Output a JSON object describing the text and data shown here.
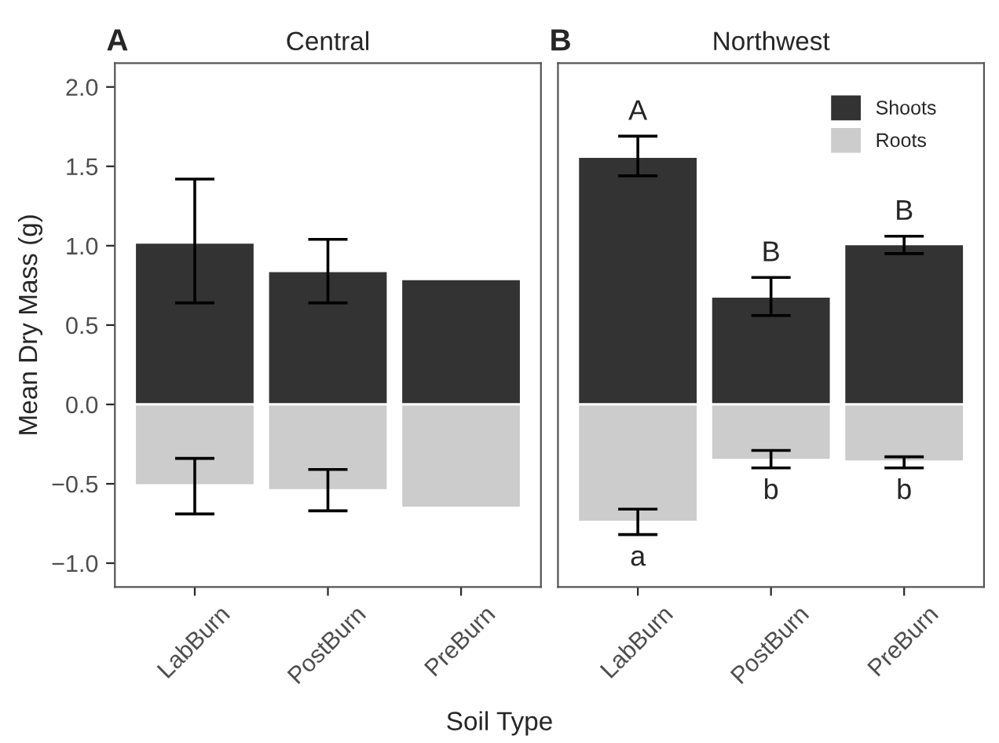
{
  "chart_data": [
    {
      "type": "bar",
      "title": "Central",
      "annotations": [
        "A"
      ],
      "xlabel": "Soil Type",
      "ylabel": "Mean Dry Mass (g)",
      "stacked": true,
      "categories": [
        "LabBurn",
        "PostBurn",
        "PreBurn"
      ],
      "series": [
        {
          "color": "#333333",
          "values": [
            1.02,
            0.84,
            0.79
          ],
          "errors": [
            [
              0.64,
              1.42
            ],
            [
              0.64,
              1.04
            ],
            null
          ]
        },
        {
          "color": "#cccccc",
          "values": [
            -0.51,
            -0.54,
            -0.65
          ],
          "errors": [
            [
              -0.69,
              -0.34
            ],
            [
              -0.67,
              -0.41
            ],
            null
          ]
        }
      ],
      "ylim": [
        -1.15,
        2.15
      ],
      "yticks": [
        {
          "value": -1.0,
          "label": "−1.0"
        },
        {
          "value": -0.5,
          "label": "−0.5"
        },
        {
          "value": 0,
          "label": "0.0"
        },
        {
          "value": 0.5,
          "label": "0.5"
        },
        {
          "value": 1.0,
          "label": "1.0"
        },
        {
          "value": 1.5,
          "label": "1.5"
        },
        {
          "value": 2.0,
          "label": "2.0"
        }
      ],
      "grid": false,
      "legend": false
    },
    {
      "type": "bar",
      "title": "Northwest",
      "annotations": [
        "B"
      ],
      "stacked": true,
      "categories": [
        "LabBurn",
        "PostBurn",
        "PreBurn"
      ],
      "series": [
        {
          "name": "Shoots",
          "color": "#333333",
          "values": [
            1.56,
            0.68,
            1.01
          ],
          "errors": [
            [
              1.44,
              1.69
            ],
            [
              0.56,
              0.8
            ],
            [
              0.95,
              1.06
            ]
          ],
          "value_labels": [
            "A",
            "B",
            "B"
          ]
        },
        {
          "name": "Roots",
          "color": "#cccccc",
          "values": [
            -0.74,
            -0.35,
            -0.36
          ],
          "errors": [
            [
              -0.82,
              -0.66
            ],
            [
              -0.4,
              -0.29
            ],
            [
              -0.4,
              -0.33
            ]
          ],
          "value_labels": [
            "a",
            "b",
            "b"
          ]
        }
      ],
      "ylim": [
        -1.15,
        2.15
      ],
      "tick_labels": "x",
      "grid": false,
      "legend": "top right"
    }
  ]
}
